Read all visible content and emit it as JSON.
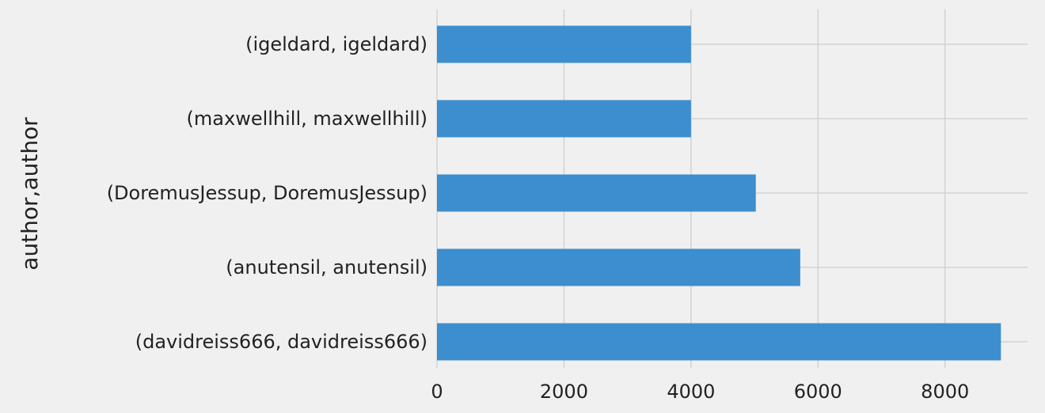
{
  "chart_data": {
    "type": "bar",
    "orientation": "horizontal",
    "categories": [
      "(igeldard, igeldard)",
      "(maxwellhill, maxwellhill)",
      "(DoremusJessup, DoremusJessup)",
      "(anutensil, anutensil)",
      "(davidreiss666, davidreiss666)"
    ],
    "values": [
      4000,
      4000,
      5020,
      5720,
      8880
    ],
    "xlabel": "",
    "ylabel": "author,author",
    "xlim": [
      0,
      9300
    ],
    "xticks": [
      0,
      2000,
      4000,
      6000,
      8000
    ],
    "xtick_labels": [
      "0",
      "2000",
      "4000",
      "6000",
      "8000"
    ],
    "grid": true,
    "bar_color": "#3c8ecf",
    "background_color": "#f0f0f0",
    "grid_color": "#d2d2d2"
  }
}
